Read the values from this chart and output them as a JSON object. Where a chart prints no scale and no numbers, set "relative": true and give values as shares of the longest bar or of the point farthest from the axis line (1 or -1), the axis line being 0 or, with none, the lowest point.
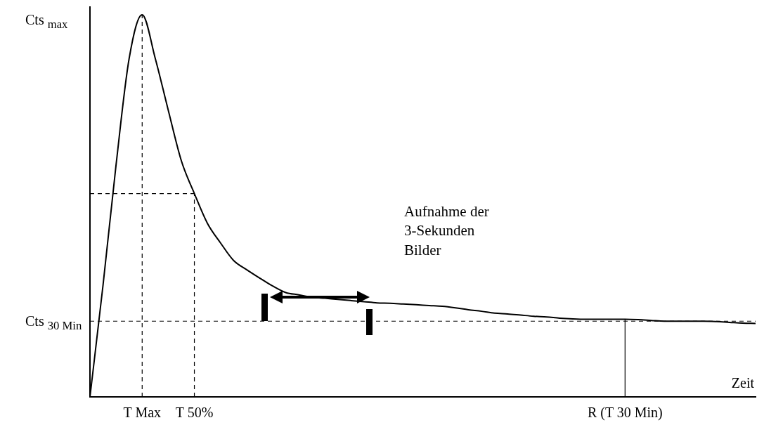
{
  "chart_data": {
    "type": "line",
    "relative": true,
    "xlabel": "Zeit",
    "tick_labels": "x",
    "grid": false,
    "categories": [
      null,
      null,
      null,
      null,
      "T Max",
      null,
      null,
      null,
      "T 50%",
      null,
      null,
      null,
      null,
      null,
      null,
      null,
      null,
      null,
      null,
      null,
      null,
      null,
      null,
      null,
      null,
      null,
      null,
      null,
      null,
      null,
      null,
      null,
      null,
      null,
      null,
      null,
      null,
      null,
      null,
      null,
      null,
      "R (T 30 Min)",
      null,
      null,
      null,
      null,
      null,
      null,
      null,
      null,
      null,
      null
    ],
    "series": [
      {
        "color": "#000000",
        "values": [
          0,
          0.292,
          0.607,
          0.885,
          1,
          0.886,
          0.75,
          0.618,
          0.532,
          0.454,
          0.403,
          0.357,
          0.333,
          0.311,
          0.29,
          0.273,
          0.267,
          0.261,
          0.258,
          0.255,
          0.252,
          0.249,
          0.246,
          0.245,
          0.243,
          0.241,
          0.239,
          0.237,
          0.233,
          0.228,
          0.224,
          0.219,
          0.217,
          0.214,
          0.211,
          0.209,
          0.206,
          0.204,
          0.203,
          0.203,
          0.203,
          0.203,
          0.202,
          0.2,
          0.198,
          0.198,
          0.198,
          0.198,
          0.197,
          0.195,
          0.193,
          0.192
        ]
      }
    ],
    "ref_lines": [
      {
        "axis": "x",
        "value": "T Max",
        "line_style": "dashed"
      },
      {
        "axis": "x",
        "value": "T 50%",
        "line_style": "dashed"
      },
      {
        "axis": "x",
        "value": "R (T 30 Min)",
        "line_style": "solid"
      },
      {
        "axis": "y",
        "value": 0.532,
        "line_style": "dashed"
      },
      {
        "axis": "y",
        "value": 0.198,
        "label": "Cts $_{30 Min}$",
        "line_style": "dashed"
      }
    ],
    "annotations": [
      "Cts $_{max}$",
      "Aufnahme der 3-Sekunden Bilder"
    ]
  }
}
